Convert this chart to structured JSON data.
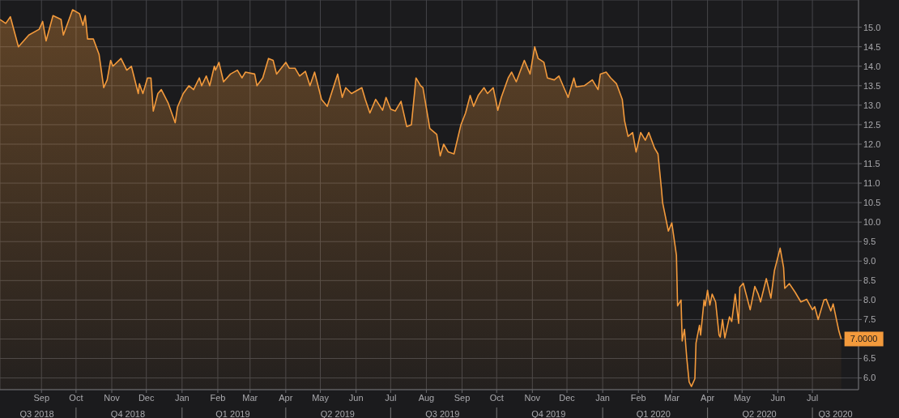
{
  "chart_data": {
    "type": "area",
    "x": [
      "2018-07-27",
      "2018-08-01",
      "2018-08-05",
      "2018-08-12",
      "2018-08-21",
      "2018-08-30",
      "2018-09-02",
      "2018-09-05",
      "2018-09-11",
      "2018-09-18",
      "2018-09-20",
      "2018-09-28",
      "2018-10-04",
      "2018-10-07",
      "2018-10-09",
      "2018-10-11",
      "2018-10-16",
      "2018-10-21",
      "2018-10-25",
      "2018-10-28",
      "2018-10-31",
      "2018-11-02",
      "2018-11-09",
      "2018-11-14",
      "2018-11-18",
      "2018-11-24",
      "2018-11-25",
      "2018-11-28",
      "2018-12-02",
      "2018-12-05",
      "2018-12-07",
      "2018-12-11",
      "2018-12-14",
      "2018-12-20",
      "2018-12-26",
      "2018-12-28",
      "2019-01-02",
      "2019-01-07",
      "2019-01-11",
      "2019-01-16",
      "2019-01-18",
      "2019-01-22",
      "2019-01-25",
      "2019-01-29",
      "2019-01-30",
      "2019-02-02",
      "2019-02-06",
      "2019-02-12",
      "2019-02-18",
      "2019-02-22",
      "2019-02-25",
      "2019-03-05",
      "2019-03-07",
      "2019-03-12",
      "2019-03-17",
      "2019-03-21",
      "2019-03-24",
      "2019-04-01",
      "2019-04-04",
      "2019-04-09",
      "2019-04-13",
      "2019-04-18",
      "2019-04-22",
      "2019-04-26",
      "2019-05-02",
      "2019-05-07",
      "2019-05-16",
      "2019-05-20",
      "2019-05-23",
      "2019-05-28",
      "2019-06-06",
      "2019-06-09",
      "2019-06-13",
      "2019-06-18",
      "2019-06-24",
      "2019-06-27",
      "2019-07-01",
      "2019-07-05",
      "2019-07-10",
      "2019-07-15",
      "2019-07-19",
      "2019-07-23",
      "2019-07-27",
      "2019-07-29",
      "2019-08-04",
      "2019-08-10",
      "2019-08-13",
      "2019-08-16",
      "2019-08-20",
      "2019-08-25",
      "2019-08-31",
      "2019-09-04",
      "2019-09-08",
      "2019-09-11",
      "2019-09-15",
      "2019-09-20",
      "2019-09-23",
      "2019-09-28",
      "2019-10-02",
      "2019-10-05",
      "2019-10-11",
      "2019-10-14",
      "2019-10-18",
      "2019-10-25",
      "2019-10-30",
      "2019-11-03",
      "2019-11-06",
      "2019-11-11",
      "2019-11-14",
      "2019-11-20",
      "2019-11-24",
      "2019-12-02",
      "2019-12-07",
      "2019-12-09",
      "2019-12-16",
      "2019-12-23",
      "2019-12-28",
      "2019-12-30",
      "2020-01-04",
      "2020-01-08",
      "2020-01-13",
      "2020-01-18",
      "2020-01-20",
      "2020-01-23",
      "2020-01-27",
      "2020-01-30",
      "2020-02-03",
      "2020-02-07",
      "2020-02-10",
      "2020-02-15",
      "2020-02-18",
      "2020-02-21",
      "2020-02-22",
      "2020-02-27",
      "2020-03-01",
      "2020-03-05",
      "2020-03-06",
      "2020-03-09",
      "2020-03-10",
      "2020-03-12",
      "2020-03-14",
      "2020-03-16",
      "2020-03-18",
      "2020-03-21",
      "2020-03-22",
      "2020-03-25",
      "2020-03-26",
      "2020-03-29",
      "2020-03-30",
      "2020-04-01",
      "2020-04-03",
      "2020-04-05",
      "2020-04-08",
      "2020-04-11",
      "2020-04-12",
      "2020-04-14",
      "2020-04-16",
      "2020-04-20",
      "2020-04-22",
      "2020-04-25",
      "2020-04-28",
      "2020-04-29",
      "2020-05-02",
      "2020-05-08",
      "2020-05-12",
      "2020-05-15",
      "2020-05-17",
      "2020-05-22",
      "2020-05-26",
      "2020-05-29",
      "2020-06-03",
      "2020-06-06",
      "2020-06-07",
      "2020-06-11",
      "2020-06-16",
      "2020-06-21",
      "2020-06-26",
      "2020-07-01",
      "2020-07-03",
      "2020-07-06",
      "2020-07-11",
      "2020-07-13",
      "2020-07-17",
      "2020-07-19",
      "2020-07-24",
      "2020-07-26"
    ],
    "series": [
      {
        "color": "#f39a3c",
        "values": [
          15.2,
          15.1,
          15.27,
          14.5,
          14.8,
          14.95,
          15.15,
          14.65,
          15.3,
          15.2,
          14.8,
          15.45,
          15.35,
          15.05,
          15.3,
          14.7,
          14.7,
          14.3,
          13.45,
          13.65,
          14.15,
          14.0,
          14.2,
          13.9,
          14.0,
          13.3,
          13.55,
          13.3,
          13.7,
          13.7,
          12.85,
          13.3,
          13.4,
          13.05,
          12.55,
          12.95,
          13.3,
          13.5,
          13.4,
          13.7,
          13.5,
          13.75,
          13.5,
          14.0,
          13.9,
          14.1,
          13.6,
          13.8,
          13.9,
          13.7,
          13.85,
          13.8,
          13.5,
          13.7,
          14.2,
          14.15,
          13.8,
          14.1,
          13.95,
          13.95,
          13.75,
          13.87,
          13.5,
          13.85,
          13.15,
          12.97,
          13.8,
          13.2,
          13.45,
          13.3,
          13.45,
          13.15,
          12.8,
          13.15,
          12.87,
          13.2,
          12.9,
          12.85,
          13.1,
          12.45,
          12.5,
          13.7,
          13.5,
          13.45,
          12.4,
          12.25,
          11.7,
          12.0,
          11.8,
          11.75,
          12.5,
          12.8,
          13.25,
          12.97,
          13.25,
          13.45,
          13.3,
          13.45,
          12.87,
          13.2,
          13.7,
          13.85,
          13.6,
          14.15,
          13.8,
          14.5,
          14.2,
          14.1,
          13.7,
          13.65,
          13.75,
          13.2,
          13.7,
          13.47,
          13.5,
          13.65,
          13.4,
          13.8,
          13.85,
          13.7,
          13.55,
          13.15,
          12.6,
          12.2,
          12.3,
          11.8,
          12.3,
          12.1,
          12.3,
          11.9,
          11.75,
          10.85,
          10.5,
          9.77,
          9.98,
          9.15,
          7.85,
          8.0,
          6.95,
          7.25,
          6.5,
          5.9,
          5.78,
          5.98,
          6.9,
          7.35,
          7.1,
          8.0,
          7.85,
          8.25,
          7.87,
          8.15,
          7.95,
          7.1,
          7.05,
          7.5,
          7.03,
          7.57,
          7.45,
          8.15,
          7.4,
          8.33,
          8.43,
          7.75,
          8.35,
          8.15,
          7.95,
          8.55,
          8.05,
          8.75,
          9.33,
          8.83,
          8.3,
          8.42,
          8.2,
          7.95,
          8.02,
          7.75,
          7.83,
          7.5,
          8.0,
          8.02,
          7.72,
          7.9,
          7.2,
          7.0
        ],
        "value_labels": [
          null,
          null,
          null,
          null,
          null,
          null,
          null,
          null,
          null,
          null,
          null,
          null,
          null,
          null,
          null,
          null,
          null,
          null,
          null,
          null,
          null,
          null,
          null,
          null,
          null,
          null,
          null,
          null,
          null,
          null,
          null,
          null,
          null,
          null,
          null,
          null,
          null,
          null,
          null,
          null,
          null,
          null,
          null,
          null,
          null,
          null,
          null,
          null,
          null,
          null,
          null,
          null,
          null,
          null,
          null,
          null,
          null,
          null,
          null,
          null,
          null,
          null,
          null,
          null,
          null,
          null,
          null,
          null,
          null,
          null,
          null,
          null,
          null,
          null,
          null,
          null,
          null,
          null,
          null,
          null,
          null,
          null,
          null,
          null,
          null,
          null,
          null,
          null,
          null,
          null,
          null,
          null,
          null,
          null,
          null,
          null,
          null,
          null,
          null,
          null,
          null,
          null,
          null,
          null,
          null,
          null,
          null,
          null,
          null,
          null,
          null,
          null,
          null,
          null,
          null,
          null,
          null,
          null,
          null,
          null,
          null,
          null,
          null,
          null,
          null,
          null,
          null,
          null,
          null,
          null,
          null,
          null,
          null,
          null,
          null,
          null,
          null,
          null,
          null,
          null,
          null,
          null,
          null,
          null,
          null,
          null,
          null,
          null,
          null,
          null,
          null,
          null,
          null,
          null,
          null,
          null,
          null,
          null,
          null,
          null,
          null,
          null,
          null,
          null,
          null,
          null,
          null,
          null,
          null,
          null,
          null,
          null,
          null,
          null,
          null,
          null,
          null,
          null,
          null,
          null,
          null,
          null,
          null,
          null,
          null,
          "7.0000"
        ]
      }
    ],
    "xlim": [
      "2018-07-27",
      "2020-08-10"
    ],
    "xticks": [
      {
        "value": "2018-09-01",
        "label": "Sep"
      },
      {
        "value": "2018-10-01",
        "label": "Oct"
      },
      {
        "value": "2018-11-01",
        "label": "Nov"
      },
      {
        "value": "2018-12-01",
        "label": "Dec"
      },
      {
        "value": "2019-01-01",
        "label": "Jan"
      },
      {
        "value": "2019-02-01",
        "label": "Feb"
      },
      {
        "value": "2019-03-01",
        "label": "Mar"
      },
      {
        "value": "2019-04-01",
        "label": "Apr"
      },
      {
        "value": "2019-05-01",
        "label": "May"
      },
      {
        "value": "2019-06-01",
        "label": "Jun"
      },
      {
        "value": "2019-07-01",
        "label": "Jul"
      },
      {
        "value": "2019-08-01",
        "label": "Aug"
      },
      {
        "value": "2019-09-01",
        "label": "Sep"
      },
      {
        "value": "2019-10-01",
        "label": "Oct"
      },
      {
        "value": "2019-11-01",
        "label": "Nov"
      },
      {
        "value": "2019-12-01",
        "label": "Dec"
      },
      {
        "value": "2020-01-01",
        "label": "Jan"
      },
      {
        "value": "2020-02-01",
        "label": "Feb"
      },
      {
        "value": "2020-03-01",
        "label": "Mar"
      },
      {
        "value": "2020-04-01",
        "label": "Apr"
      },
      {
        "value": "2020-05-01",
        "label": "May"
      },
      {
        "value": "2020-06-01",
        "label": "Jun"
      },
      {
        "value": "2020-07-01",
        "label": "Jul"
      }
    ],
    "x2lim": [
      "2018-07-27",
      "2020-08-10"
    ],
    "x2ticks": [
      {
        "value": "2018-08-28",
        "label": "Q3 2018"
      },
      {
        "value": "2018-10-01",
        "label": null
      },
      {
        "value": "2018-11-15",
        "label": "Q4 2018"
      },
      {
        "value": "2019-01-01",
        "label": null
      },
      {
        "value": "2019-02-14",
        "label": "Q1 2019"
      },
      {
        "value": "2019-04-01",
        "label": null
      },
      {
        "value": "2019-05-16",
        "label": "Q2 2019"
      },
      {
        "value": "2019-07-01",
        "label": null
      },
      {
        "value": "2019-08-15",
        "label": "Q3 2019"
      },
      {
        "value": "2019-10-01",
        "label": null
      },
      {
        "value": "2019-11-15",
        "label": "Q4 2019"
      },
      {
        "value": "2020-01-01",
        "label": null
      },
      {
        "value": "2020-02-14",
        "label": "Q1 2020"
      },
      {
        "value": "2020-04-01",
        "label": null
      },
      {
        "value": "2020-05-16",
        "label": "Q2 2020"
      },
      {
        "value": "2020-07-01",
        "label": null
      },
      {
        "value": "2020-07-21",
        "label": "Q3 2020"
      }
    ],
    "ylim": [
      5.7,
      15.7
    ],
    "yticks": [
      {
        "value": 6,
        "label": "6.0"
      },
      {
        "value": 6.5,
        "label": "6.5"
      },
      {
        "value": 7,
        "label": null
      },
      {
        "value": 7.5,
        "label": "7.5"
      },
      {
        "value": 8,
        "label": "8.0"
      },
      {
        "value": 8.5,
        "label": "8.5"
      },
      {
        "value": 9,
        "label": "9.0"
      },
      {
        "value": 9.5,
        "label": "9.5"
      },
      {
        "value": 10,
        "label": "10.0"
      },
      {
        "value": 10.5,
        "label": "10.5"
      },
      {
        "value": 11,
        "label": "11.0"
      },
      {
        "value": 11.5,
        "label": "11.5"
      },
      {
        "value": 12,
        "label": "12.0"
      },
      {
        "value": 12.5,
        "label": "12.5"
      },
      {
        "value": 13,
        "label": "13.0"
      },
      {
        "value": 13.5,
        "label": "13.5"
      },
      {
        "value": 14,
        "label": "14.0"
      },
      {
        "value": 14.5,
        "label": "14.5"
      },
      {
        "value": 15,
        "label": "15.0"
      }
    ],
    "grid": true
  }
}
